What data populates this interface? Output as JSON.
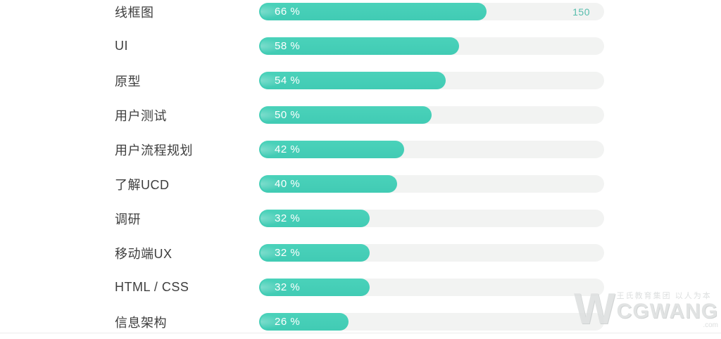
{
  "chart_data": {
    "type": "bar",
    "orientation": "horizontal",
    "title": "",
    "xlabel": "",
    "ylabel": "",
    "xlim": [
      0,
      100
    ],
    "grid": false,
    "categories": [
      "线框图",
      "UI",
      "原型",
      "用户测试",
      "用户流程规划",
      "了解UCD",
      "调研",
      "移动端UX",
      "HTML / CSS",
      "信息架构"
    ],
    "values": [
      66,
      58,
      54,
      50,
      42,
      40,
      32,
      32,
      32,
      26
    ],
    "value_suffix": " %",
    "first_track_end_annotation": "150"
  },
  "rows": [
    {
      "label": "线框图",
      "value": 66,
      "percent_label": "66 %",
      "track_end_label": "150"
    },
    {
      "label": "UI",
      "value": 58,
      "percent_label": "58 %",
      "track_end_label": ""
    },
    {
      "label": "原型",
      "value": 54,
      "percent_label": "54 %",
      "track_end_label": ""
    },
    {
      "label": "用户测试",
      "value": 50,
      "percent_label": "50 %",
      "track_end_label": ""
    },
    {
      "label": "用户流程规划",
      "value": 42,
      "percent_label": "42 %",
      "track_end_label": ""
    },
    {
      "label": "了解UCD",
      "value": 40,
      "percent_label": "40 %",
      "track_end_label": ""
    },
    {
      "label": "调研",
      "value": 32,
      "percent_label": "32 %",
      "track_end_label": ""
    },
    {
      "label": "移动端UX",
      "value": 32,
      "percent_label": "32 %",
      "track_end_label": ""
    },
    {
      "label": "HTML / CSS",
      "value": 32,
      "percent_label": "32 %",
      "track_end_label": ""
    },
    {
      "label": "信息架构",
      "value": 26,
      "percent_label": "26 %",
      "track_end_label": ""
    }
  ],
  "colors": {
    "bar_fill": "#41cbb4",
    "bar_track": "#f2f3f2",
    "label_text": "#3e3e3e",
    "percent_text": "#ffffff",
    "annotation_text": "#56bdac",
    "background": "#ffffff",
    "watermark": "#d7dada"
  },
  "watermark": {
    "logo": "W",
    "slogan": "王氏教育集团 以人为本",
    "name": "CGWANG",
    "domain_suffix": ".com"
  }
}
